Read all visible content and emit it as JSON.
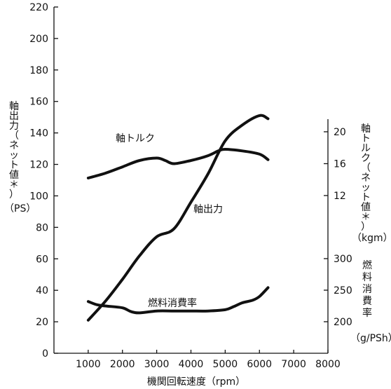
{
  "chart_data": {
    "type": "line",
    "xlabel": "機関回転速度（rpm）",
    "xlim": [
      0,
      8000
    ],
    "x_ticks": [
      1000,
      2000,
      3000,
      4000,
      5000,
      6000,
      7000,
      8000
    ],
    "left_axis": {
      "label_lines": [
        "軸",
        "出",
        "力",
        "（",
        "ネ",
        "ッ",
        "ト",
        "値",
        "＊",
        "）"
      ],
      "unit": "（PS）",
      "ylim": [
        0,
        220
      ],
      "ticks": [
        0,
        20,
        40,
        60,
        80,
        100,
        120,
        140,
        160,
        180,
        200,
        220
      ]
    },
    "right_axis_torque": {
      "label_lines": [
        "軸",
        "ト",
        "ル",
        "ク",
        "（",
        "ネ",
        "ッ",
        "ト",
        "値",
        "＊",
        "）"
      ],
      "unit": "（kgm）",
      "ticks": [
        12,
        16,
        20
      ]
    },
    "right_axis_bsfc": {
      "label_lines": [
        "燃",
        "料",
        "消",
        "費",
        "率"
      ],
      "unit": "（g/PSh）",
      "ticks": [
        200,
        250,
        300
      ]
    },
    "series": [
      {
        "name": "軸出力",
        "axis": "PS",
        "x": [
          1000,
          1500,
          2000,
          2500,
          3000,
          3500,
          4000,
          4500,
          5000,
          5500,
          6000,
          6250
        ],
        "values": [
          21,
          33,
          47,
          62,
          74,
          79,
          96,
          114,
          135,
          145,
          151,
          149
        ]
      },
      {
        "name": "軸トルク",
        "axis": "kgm",
        "x": [
          1000,
          1500,
          2000,
          2500,
          3000,
          3250,
          3500,
          4000,
          4500,
          4800,
          5000,
          5500,
          6000,
          6250
        ],
        "values": [
          14.2,
          14.8,
          15.6,
          16.4,
          16.7,
          16.4,
          16.0,
          16.4,
          17.0,
          17.6,
          17.8,
          17.6,
          17.2,
          16.5
        ]
      },
      {
        "name": "燃料消費率",
        "axis": "g/PSh",
        "x": [
          1000,
          1250,
          1500,
          2000,
          2250,
          2500,
          3000,
          3500,
          4000,
          4500,
          5000,
          5250,
          5500,
          5800,
          6000,
          6250
        ],
        "values": [
          232,
          227,
          225,
          222,
          216,
          214,
          217,
          217,
          217,
          217,
          219,
          224,
          230,
          234,
          240,
          254
        ]
      }
    ]
  }
}
